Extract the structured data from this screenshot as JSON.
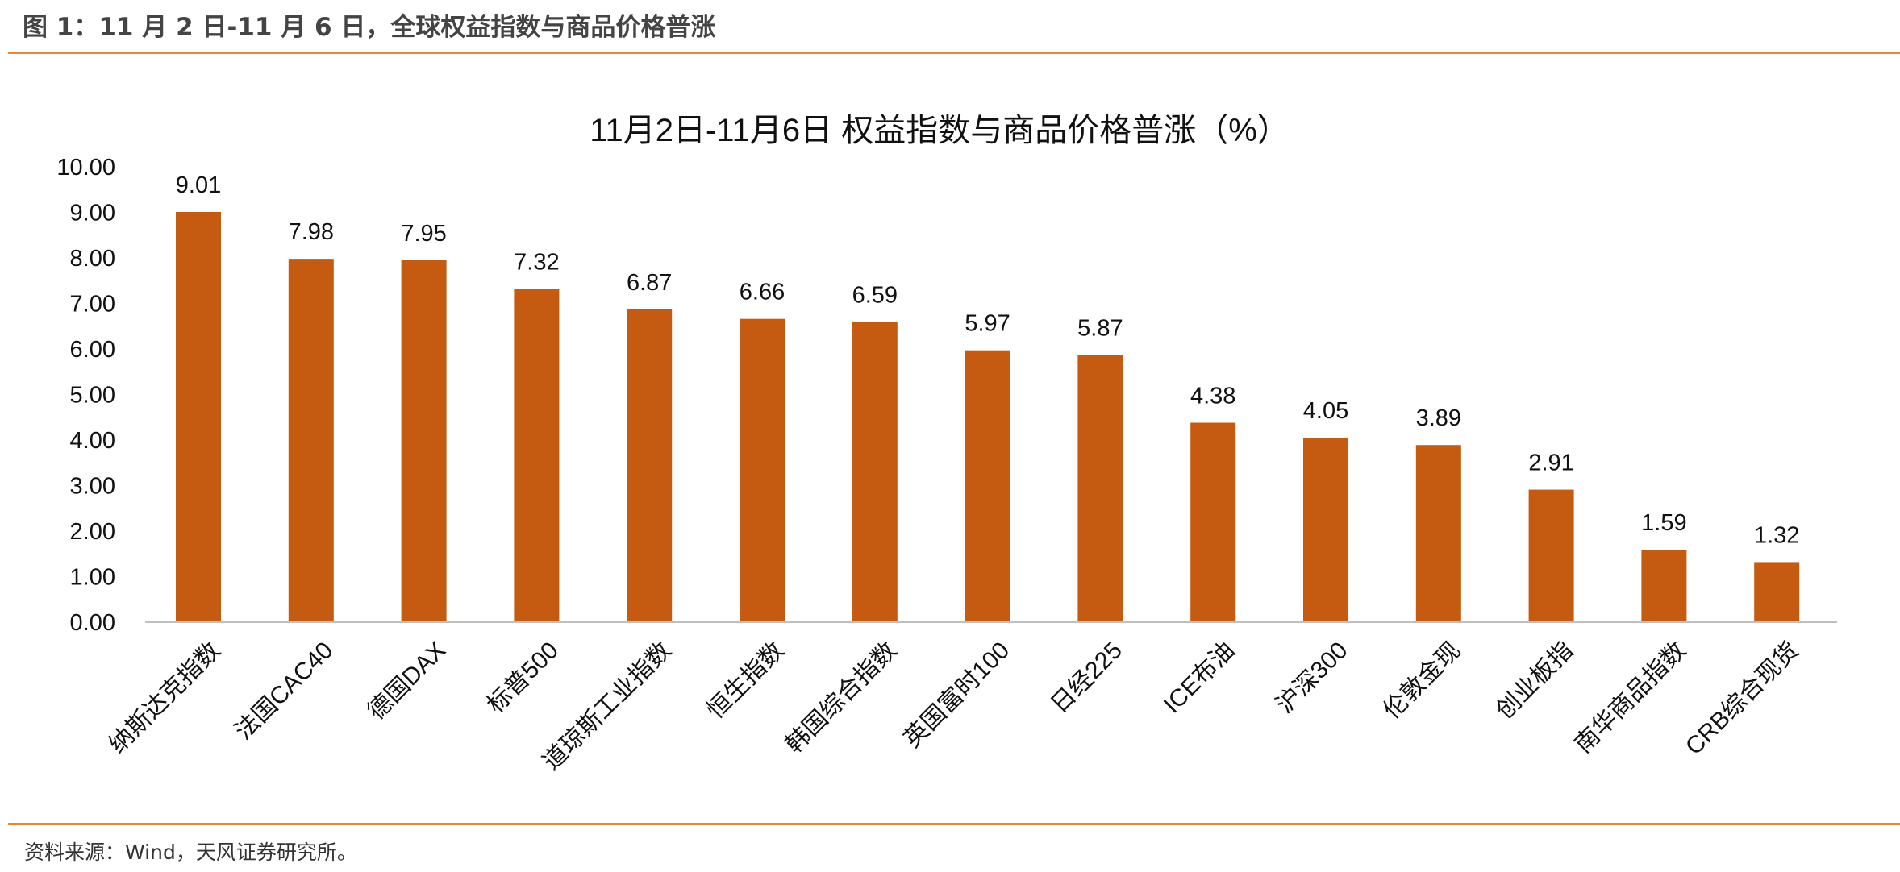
{
  "figure_title": "图 1：11 月 2 日-11 月 6 日，全球权益指数与商品价格普涨",
  "source": "资料来源：Wind，天风证券研究所。",
  "colors": {
    "bar": "#C55A11",
    "rule": "#E8873A"
  },
  "chart_data": {
    "type": "bar",
    "title": "11月2日-11月6日 权益指数与商品价格普涨（%）",
    "xlabel": "",
    "ylabel": "",
    "ylim": [
      0,
      10
    ],
    "yticks": [
      "0.00",
      "1.00",
      "2.00",
      "3.00",
      "4.00",
      "5.00",
      "6.00",
      "7.00",
      "8.00",
      "9.00",
      "10.00"
    ],
    "grid": false,
    "categories": [
      "纳斯达克指数",
      "法国CAC40",
      "德国DAX",
      "标普500",
      "道琼斯工业指数",
      "恒生指数",
      "韩国综合指数",
      "英国富时100",
      "日经225",
      "ICE布油",
      "沪深300",
      "伦敦金现",
      "创业板指",
      "南华商品指数",
      "CRB综合现货"
    ],
    "values": [
      9.01,
      7.98,
      7.95,
      7.32,
      6.87,
      6.66,
      6.59,
      5.97,
      5.87,
      4.38,
      4.05,
      3.89,
      2.91,
      1.59,
      1.32
    ],
    "value_labels": [
      "9.01",
      "7.98",
      "7.95",
      "7.32",
      "6.87",
      "6.66",
      "6.59",
      "5.97",
      "5.87",
      "4.38",
      "4.05",
      "3.89",
      "2.91",
      "1.59",
      "1.32"
    ]
  }
}
